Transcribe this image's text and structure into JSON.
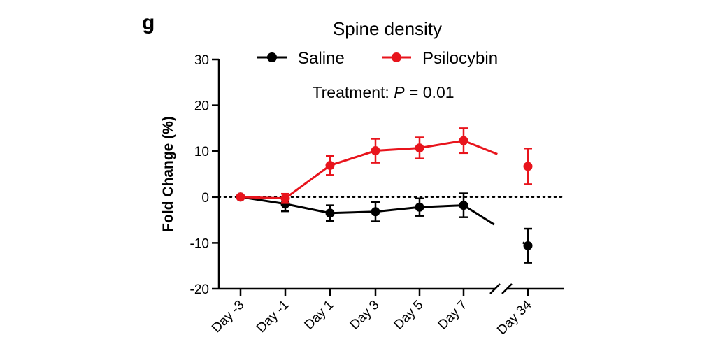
{
  "panel_label": "g",
  "annotation": {
    "prefix": "Treatment: ",
    "p_symbol": "P",
    "suffix": " = 0.01"
  },
  "chart_data": {
    "type": "line",
    "title": "Spine density",
    "xlabel": "",
    "ylabel": "Fold Change (%)",
    "ylim": [
      -20,
      30
    ],
    "yticks": [
      -20,
      -10,
      0,
      10,
      20,
      30
    ],
    "categories": [
      "Day -3",
      "Day -1",
      "Day 1",
      "Day 3",
      "Day 5",
      "Day 7",
      "Day 34"
    ],
    "axis_break_before": "Day 34",
    "reference_line": 0,
    "legend_position": "top-center",
    "series": [
      {
        "name": "Saline",
        "color": "#000000",
        "values": [
          0,
          -1.5,
          -3.5,
          -3.2,
          -2.2,
          -1.8,
          -10.6
        ],
        "errors": [
          0,
          1.6,
          1.7,
          2.1,
          1.9,
          2.6,
          3.7
        ]
      },
      {
        "name": "Psilocybin",
        "color": "#e8141c",
        "values": [
          0,
          -0.3,
          6.9,
          10.1,
          10.7,
          12.3,
          6.7
        ],
        "errors": [
          0,
          1.0,
          2.1,
          2.6,
          2.3,
          2.7,
          3.9
        ]
      }
    ]
  }
}
